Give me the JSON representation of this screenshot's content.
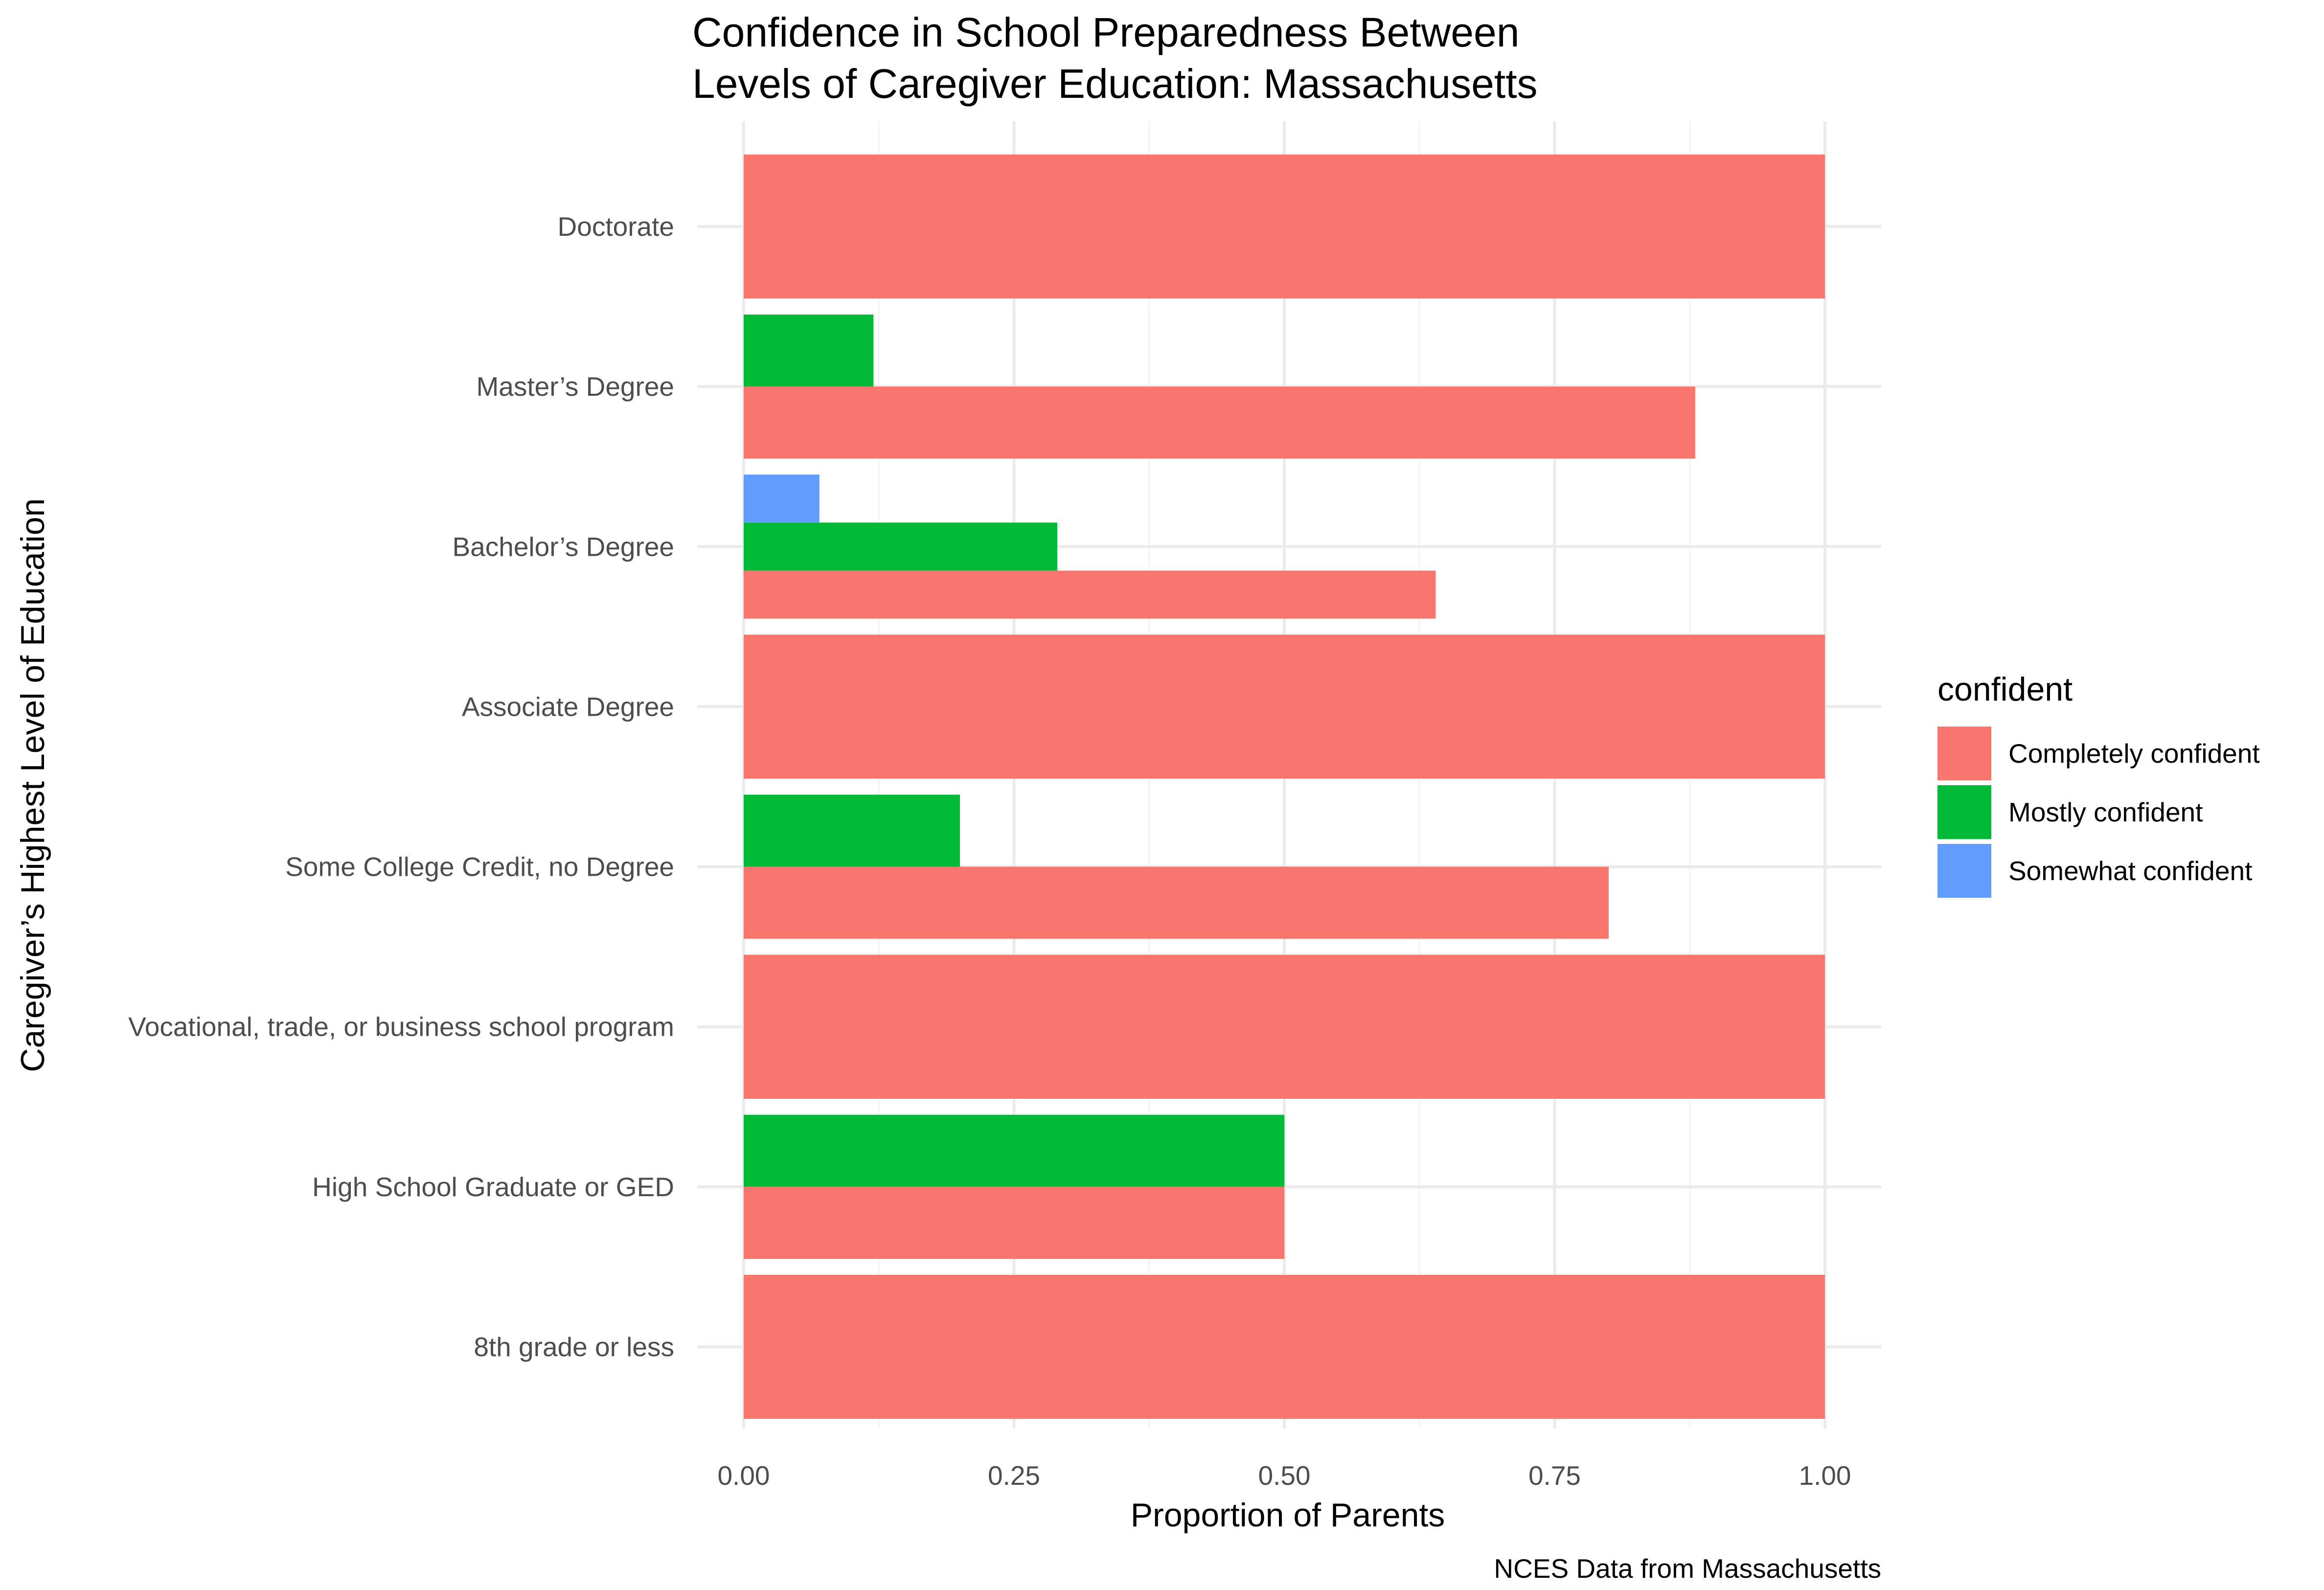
{
  "chart_data": {
    "type": "bar",
    "orientation": "horizontal",
    "position": "dodge",
    "title": [
      "Confidence in School Preparedness Between",
      "Levels of Caregiver Education: Massachusetts"
    ],
    "xlabel": "Proportion of Parents",
    "ylabel": "Caregiver’s Highest Level of Education",
    "caption": "NCES Data from Massachusetts",
    "xlim": [
      0,
      1
    ],
    "xticks": [
      "0.00",
      "0.25",
      "0.50",
      "0.75",
      "1.00"
    ],
    "categories": [
      "8th grade or less",
      "High School Graduate or GED",
      "Vocational, trade, or business school program",
      "Some College Credit, no Degree",
      "Associate Degree",
      "Bachelor’s Degree",
      "Master’s Degree",
      "Doctorate"
    ],
    "legend": {
      "title": "confident",
      "placement": "right"
    },
    "series": [
      {
        "name": "Completely confident",
        "color": "#F8766D",
        "values": [
          1.0,
          0.5,
          1.0,
          0.8,
          1.0,
          0.64,
          0.88,
          1.0
        ]
      },
      {
        "name": "Mostly confident",
        "color": "#00BA38",
        "values": [
          null,
          0.5,
          null,
          0.2,
          null,
          0.29,
          0.12,
          null
        ]
      },
      {
        "name": "Somewhat confident",
        "color": "#619CFF",
        "values": [
          null,
          null,
          null,
          null,
          null,
          0.07,
          null,
          null
        ]
      }
    ],
    "grid": true
  }
}
